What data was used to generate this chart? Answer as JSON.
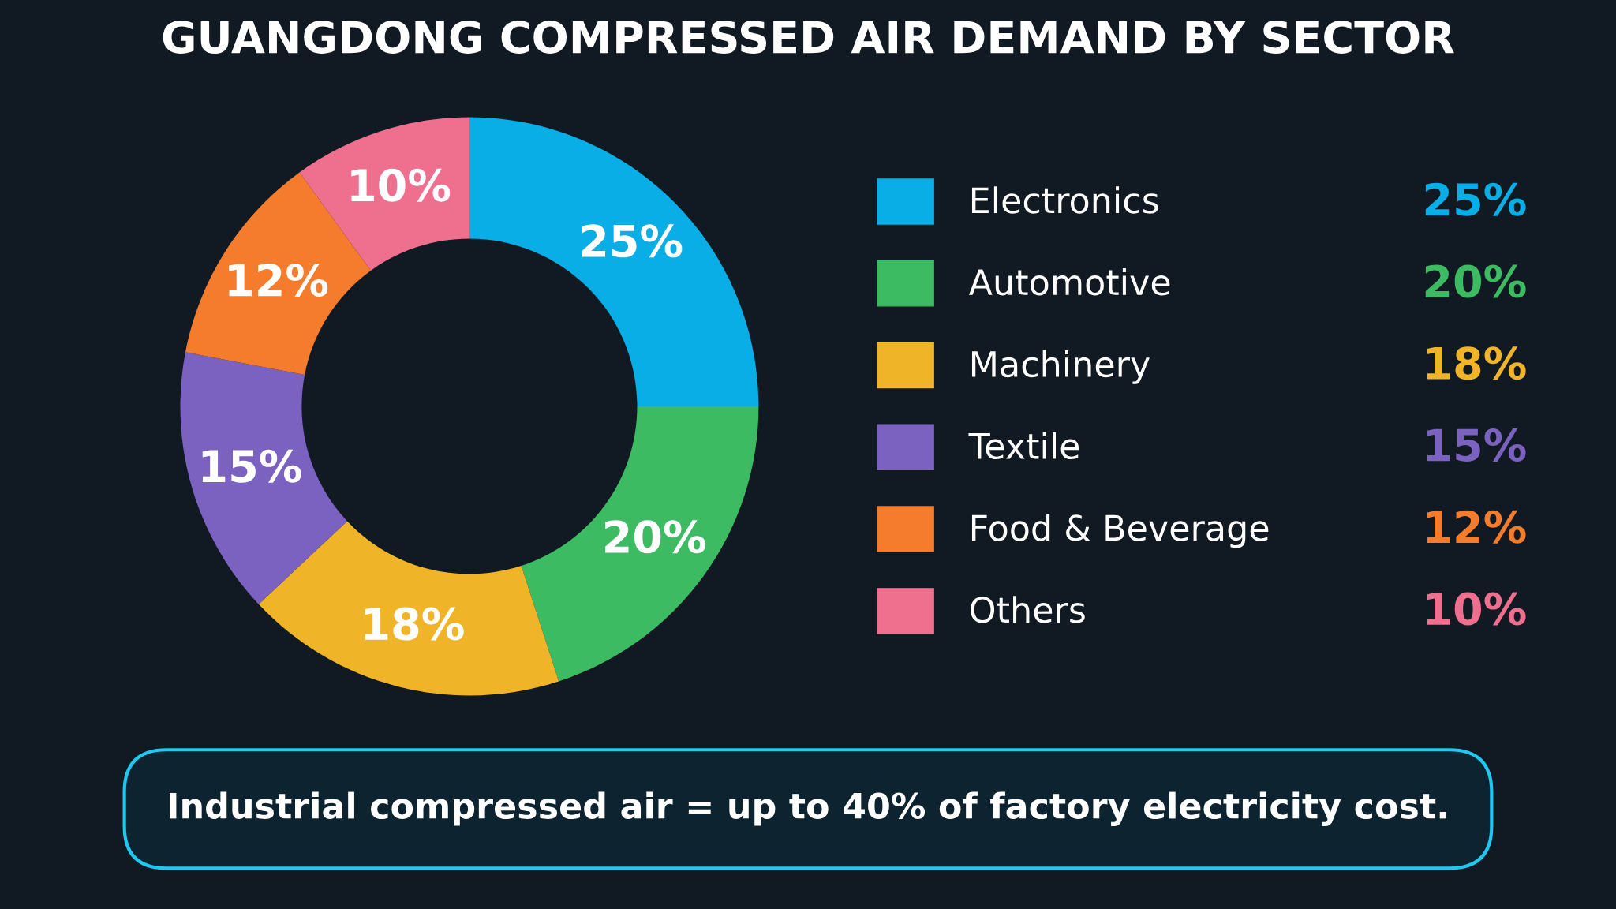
{
  "chart_data": {
    "type": "donut",
    "title": "GUANGDONG COMPRESSED AIR DEMAND BY SECTOR",
    "categories": [
      "Electronics",
      "Automotive",
      "Machinery",
      "Textile",
      "Food & Beverage",
      "Others"
    ],
    "values": [
      25,
      20,
      18,
      15,
      12,
      10
    ],
    "colors": [
      "#0aaee6",
      "#3dbb62",
      "#f0b429",
      "#7b62c0",
      "#f47c2c",
      "#ee6f8e"
    ],
    "value_labels": [
      "25%",
      "20%",
      "18%",
      "15%",
      "12%",
      "10%"
    ],
    "legend": "right",
    "annotations": [
      "Industrial compressed air = up to 40% of factory electricity cost."
    ]
  }
}
